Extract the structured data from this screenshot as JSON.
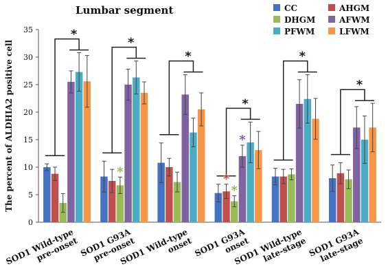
{
  "chart_data": {
    "type": "bar",
    "title": "Lumbar segment",
    "ylabel": "The percent of ALDHIA2 positive cell",
    "ylim": [
      0,
      35
    ],
    "yticks": [
      0,
      5,
      10,
      15,
      20,
      25,
      30,
      35
    ],
    "legend_position": "top-right",
    "categories": [
      [
        "SOD1 Wild-type",
        "pre-onset"
      ],
      [
        "SOD1 G93A",
        "pre-onset"
      ],
      [
        "SOD1 Wild-type",
        "onset"
      ],
      [
        "SOD1 G93A",
        "onset"
      ],
      [
        "SOD1 Wild-type",
        "late-stage"
      ],
      [
        "SOD1 G93A",
        "late-stage"
      ]
    ],
    "series": [
      {
        "name": "CC",
        "color": "#4472C4",
        "values": [
          10.0,
          8.3,
          10.8,
          5.3,
          8.3,
          8.0
        ],
        "errors": [
          0.6,
          2.8,
          3.6,
          1.6,
          1.5,
          2.4
        ]
      },
      {
        "name": "AHGM",
        "color": "#C0504D",
        "values": [
          8.8,
          7.5,
          10.0,
          5.6,
          8.3,
          8.9
        ],
        "errors": [
          1.2,
          2.1,
          1.6,
          1.3,
          1.3,
          1.9
        ]
      },
      {
        "name": "DHGM",
        "color": "#9BBB59",
        "values": [
          3.5,
          6.7,
          7.3,
          3.8,
          8.7,
          7.8
        ],
        "errors": [
          1.7,
          1.5,
          1.8,
          1.0,
          1.0,
          1.7
        ]
      },
      {
        "name": "AFWM",
        "color": "#8064A2",
        "values": [
          25.5,
          25.0,
          23.2,
          12.0,
          21.5,
          17.2
        ],
        "errors": [
          2.0,
          2.8,
          3.6,
          2.0,
          4.4,
          3.8
        ]
      },
      {
        "name": "PFWM",
        "color": "#4BACC6",
        "values": [
          27.3,
          26.3,
          16.3,
          14.5,
          22.4,
          15.0
        ],
        "errors": [
          3.5,
          3.0,
          2.6,
          3.7,
          4.4,
          4.3
        ]
      },
      {
        "name": "LFWM",
        "color": "#F79646",
        "values": [
          25.6,
          23.5,
          20.5,
          13.1,
          18.8,
          17.2
        ],
        "errors": [
          4.7,
          2.0,
          3.0,
          3.4,
          3.7,
          4.4
        ]
      }
    ],
    "annotations": [
      {
        "text": "*",
        "color": "#222222",
        "group": 0,
        "kind": "bracket"
      },
      {
        "text": "*",
        "color": "#222222",
        "group": 1,
        "kind": "bracket"
      },
      {
        "text": "*",
        "color": "#222222",
        "group": 2,
        "kind": "bracket"
      },
      {
        "text": "*",
        "color": "#222222",
        "group": 3,
        "kind": "bracket"
      },
      {
        "text": "*",
        "color": "#222222",
        "group": 4,
        "kind": "bracket"
      },
      {
        "text": "*",
        "color": "#222222",
        "group": 5,
        "kind": "bracket"
      },
      {
        "text": "*",
        "color": "#9BBB59",
        "group": 1,
        "series": 2,
        "kind": "bar"
      },
      {
        "text": "*",
        "color": "#C0504D",
        "group": 3,
        "series": 1,
        "kind": "bar"
      },
      {
        "text": "*",
        "color": "#9BBB59",
        "group": 3,
        "series": 2,
        "kind": "bar"
      },
      {
        "text": "*",
        "color": "#8064A2",
        "group": 3,
        "series": 3,
        "kind": "bar"
      }
    ]
  }
}
